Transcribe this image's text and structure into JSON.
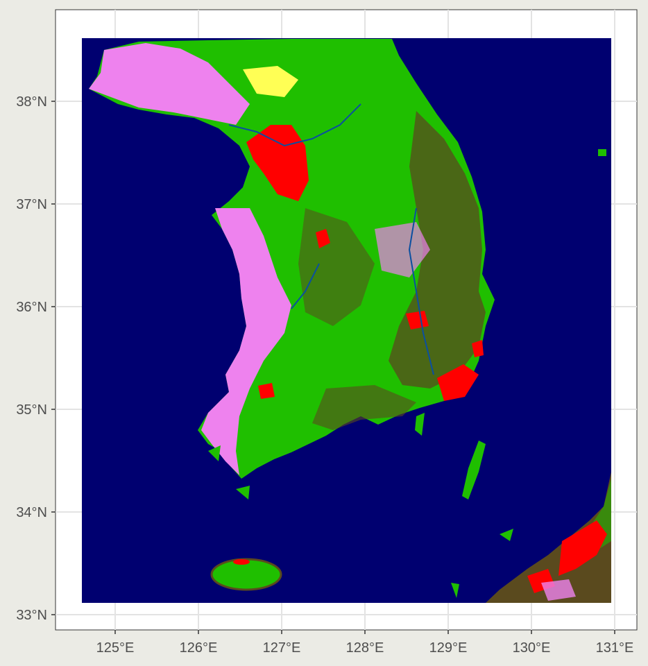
{
  "map": {
    "y_axis_labels": [
      "38°N",
      "37°N",
      "36°N",
      "35°N",
      "34°N",
      "33°N"
    ],
    "x_axis_labels": [
      "125°E",
      "126°E",
      "127°E",
      "128°E",
      "129°E",
      "130°E",
      "131°E"
    ],
    "colors": {
      "panel_background": "#FFFFFF",
      "outer_background": "#EBEBE5",
      "grid": "#E3E3E3",
      "water": "#000070",
      "forest": "#1FBF00",
      "dark_forest": "#5A4A1E",
      "cropland": "#EE82EE",
      "urban": "#FF0000",
      "grassland": "#FFFF55",
      "river": "#0A4FA0"
    }
  }
}
